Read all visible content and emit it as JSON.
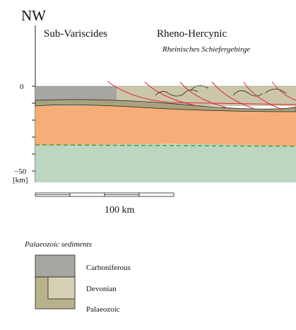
{
  "header": {
    "direction": "NW",
    "regions": [
      "Sub-Variscides",
      "Rheno-Hercynic"
    ],
    "subtitle": "Rheinisches Schiefergebirge"
  },
  "depth_axis": {
    "top": "0",
    "bottom": "−50",
    "unit": "[km]"
  },
  "scale": {
    "label": "100 km"
  },
  "legend": {
    "title": "Palaeozoic sediments",
    "items": [
      "Carboniferous",
      "Devonian",
      "Palaeozoic"
    ]
  }
}
